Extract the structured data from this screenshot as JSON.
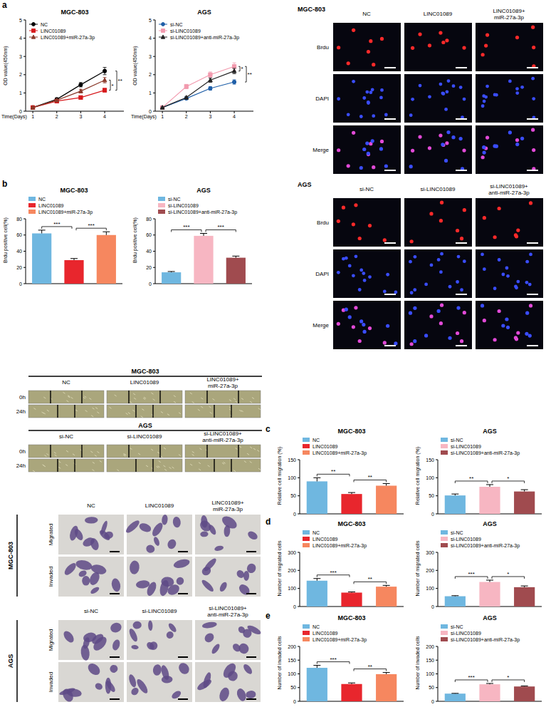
{
  "chart_data": [
    {
      "type": "line",
      "title": "MGC-803",
      "y_label": "OD value(450nm)",
      "x_label": "Time(Days)",
      "x": [
        1,
        2,
        3,
        4
      ],
      "xlim": [
        0.7,
        4.8
      ],
      "xticks": [
        1,
        2,
        3,
        4
      ],
      "ylim": [
        0,
        5
      ],
      "yticks": [
        0,
        1,
        2,
        3,
        4,
        5
      ],
      "legend": "top-left",
      "series": [
        {
          "name": "NC",
          "color": "#000000",
          "marker": "circle",
          "values": [
            0.2,
            0.65,
            1.45,
            2.2
          ],
          "errors": [
            0.03,
            0.08,
            0.12,
            0.2
          ]
        },
        {
          "name": "LINC01089",
          "color": "#d7191c",
          "marker": "square",
          "values": [
            0.2,
            0.55,
            0.75,
            1.15
          ],
          "errors": [
            0.03,
            0.06,
            0.06,
            0.1
          ]
        },
        {
          "name": "LINC01089+miR-27a-3p",
          "color": "#8b3a2b",
          "marker": "triangle",
          "values": [
            0.2,
            0.6,
            1.1,
            1.7
          ],
          "errors": [
            0.03,
            0.05,
            0.1,
            0.15
          ]
        }
      ],
      "annotations": [
        {
          "text": "*",
          "between": [
            1,
            2
          ]
        },
        {
          "text": "**",
          "between": [
            0,
            1
          ]
        }
      ]
    },
    {
      "type": "line",
      "title": "AGS",
      "y_label": "OD value(450nm)",
      "x_label": "Time(Days)",
      "x": [
        1,
        2,
        3,
        4
      ],
      "xlim": [
        0.7,
        4.8
      ],
      "xticks": [
        1,
        2,
        3,
        4
      ],
      "ylim": [
        0,
        5
      ],
      "yticks": [
        0,
        1,
        2,
        3,
        4,
        5
      ],
      "legend": "top-left",
      "series": [
        {
          "name": "si-NC",
          "color": "#1f5fa8",
          "marker": "circle",
          "values": [
            0.2,
            0.7,
            1.25,
            1.6
          ],
          "errors": [
            0.03,
            0.06,
            0.1,
            0.12
          ]
        },
        {
          "name": "si-LINC01089",
          "color": "#f29aae",
          "marker": "square",
          "values": [
            0.2,
            1.35,
            2.0,
            2.45
          ],
          "errors": [
            0.03,
            0.12,
            0.15,
            0.2
          ]
        },
        {
          "name": "si-LINC01089+anti-miR-27a-3p",
          "color": "#222222",
          "marker": "triangle",
          "values": [
            0.2,
            0.75,
            1.7,
            2.2
          ],
          "errors": [
            0.03,
            0.06,
            0.12,
            0.15
          ]
        }
      ],
      "annotations": [
        {
          "text": "*",
          "between": [
            1,
            2
          ]
        },
        {
          "text": "**",
          "between": [
            0,
            1
          ]
        }
      ]
    },
    {
      "type": "bar",
      "title": "MGC-803",
      "y_label": "Brdu positive cell(%)",
      "categories": [
        "NC",
        "LINC01089",
        "LINC01089+miR-27a-3p"
      ],
      "values": [
        62,
        29,
        60
      ],
      "errors": [
        4,
        2,
        4
      ],
      "colors": [
        "#6fb7e0",
        "#e8262d",
        "#f6875f"
      ],
      "ylim": [
        0,
        80
      ],
      "yticks": [
        0,
        20,
        40,
        60,
        80
      ],
      "legend": "top-left",
      "tick_labels": "y",
      "annotations": [
        {
          "text": "***",
          "between": [
            0,
            1
          ]
        },
        {
          "text": "***",
          "between": [
            1,
            2
          ]
        }
      ]
    },
    {
      "type": "bar",
      "title": "AGS",
      "y_label": "Brdu positive cell(%)",
      "categories": [
        "si-NC",
        "si-LINC01089",
        "si-LINC01089+anti-miR-27a-3p"
      ],
      "values": [
        14,
        59,
        32
      ],
      "errors": [
        1,
        3,
        2
      ],
      "colors": [
        "#6fb7e0",
        "#f7b6c2",
        "#a04b4f"
      ],
      "ylim": [
        0,
        80
      ],
      "yticks": [
        0,
        20,
        40,
        60,
        80
      ],
      "legend": "top-left",
      "tick_labels": "y",
      "annotations": [
        {
          "text": "***",
          "between": [
            0,
            1
          ]
        },
        {
          "text": "***",
          "between": [
            1,
            2
          ]
        }
      ]
    },
    {
      "type": "bar",
      "title": "MGC-803",
      "y_label": "Relative cell migration (%)",
      "categories": [
        "NC",
        "LINC01089",
        "LINC01089+miR-27a-3p"
      ],
      "values": [
        90,
        55,
        78
      ],
      "errors": [
        10,
        4,
        6
      ],
      "colors": [
        "#6fb7e0",
        "#e8262d",
        "#f6875f"
      ],
      "ylim": [
        0,
        150
      ],
      "yticks": [
        0,
        50,
        100,
        150
      ],
      "legend": "top-left",
      "tick_labels": "y",
      "annotations": [
        {
          "text": "**",
          "between": [
            0,
            1
          ]
        },
        {
          "text": "**",
          "between": [
            1,
            2
          ]
        }
      ]
    },
    {
      "type": "bar",
      "title": "AGS",
      "y_label": "Relative cell migration (%)",
      "categories": [
        "si-NC",
        "si-LINC01089",
        "si-LINC01089+anti-miR-27a-3p"
      ],
      "values": [
        51,
        75,
        62
      ],
      "errors": [
        4,
        6,
        5
      ],
      "colors": [
        "#6fb7e0",
        "#f7b6c2",
        "#a04b4f"
      ],
      "ylim": [
        0,
        150
      ],
      "yticks": [
        0,
        50,
        100,
        150
      ],
      "legend": "top-left",
      "tick_labels": "y",
      "annotations": [
        {
          "text": "**",
          "between": [
            0,
            1
          ]
        },
        {
          "text": "*",
          "between": [
            1,
            2
          ]
        }
      ]
    },
    {
      "type": "bar",
      "title": "MGC-803",
      "y_label": "Number of migrated cells",
      "categories": [
        "NC",
        "LINC01089",
        "LINC01089+miR-27a-3p"
      ],
      "values": [
        143,
        77,
        110
      ],
      "errors": [
        12,
        4,
        7
      ],
      "colors": [
        "#6fb7e0",
        "#e8262d",
        "#f6875f"
      ],
      "ylim": [
        0,
        300
      ],
      "yticks": [
        0,
        100,
        200,
        300
      ],
      "legend": "top-left",
      "tick_labels": "y",
      "annotations": [
        {
          "text": "***",
          "between": [
            0,
            1
          ]
        },
        {
          "text": "**",
          "between": [
            1,
            2
          ]
        }
      ]
    },
    {
      "type": "bar",
      "title": "AGS",
      "y_label": "Number of migrated cells",
      "categories": [
        "si-NC",
        "si-LINC01089",
        "si-LINC01089+anti-miR-27a-3p"
      ],
      "values": [
        57,
        136,
        107
      ],
      "errors": [
        3,
        10,
        7
      ],
      "colors": [
        "#6fb7e0",
        "#f7b6c2",
        "#a04b4f"
      ],
      "ylim": [
        0,
        300
      ],
      "yticks": [
        0,
        100,
        200,
        300
      ],
      "legend": "top-left",
      "tick_labels": "y",
      "annotations": [
        {
          "text": "***",
          "between": [
            0,
            1
          ]
        },
        {
          "text": "*",
          "between": [
            1,
            2
          ]
        }
      ]
    },
    {
      "type": "bar",
      "title": "MGC-803",
      "y_label": "Number of invaded cells",
      "categories": [
        "NC",
        "LINC01089",
        "LINC01089+miR-27a-3p"
      ],
      "values": [
        122,
        63,
        99
      ],
      "errors": [
        9,
        4,
        6
      ],
      "colors": [
        "#6fb7e0",
        "#e8262d",
        "#f6875f"
      ],
      "ylim": [
        0,
        200
      ],
      "yticks": [
        0,
        50,
        100,
        150,
        200
      ],
      "legend": "top-left",
      "tick_labels": "y",
      "annotations": [
        {
          "text": "***",
          "between": [
            0,
            1
          ]
        },
        {
          "text": "**",
          "between": [
            1,
            2
          ]
        }
      ]
    },
    {
      "type": "bar",
      "title": "AGS",
      "y_label": "Number of invaded cells",
      "categories": [
        "si-NC",
        "si-LINC01089",
        "si-LINC01089+anti-miR-27a-3p"
      ],
      "values": [
        28,
        62,
        54
      ],
      "errors": [
        1,
        3,
        2
      ],
      "colors": [
        "#6fb7e0",
        "#f7b6c2",
        "#a04b4f"
      ],
      "ylim": [
        0,
        200
      ],
      "yticks": [
        0,
        50,
        100,
        150,
        200
      ],
      "legend": "top-left",
      "tick_labels": "y",
      "annotations": [
        {
          "text": "***",
          "between": [
            0,
            1
          ]
        },
        {
          "text": "*",
          "between": [
            1,
            2
          ]
        }
      ]
    }
  ],
  "figure": {
    "panel_labels": [
      "a",
      "b",
      "c",
      "d",
      "e"
    ],
    "brdu": [
      {
        "cell_line": "MGC-803",
        "columns": [
          [
            "NC"
          ],
          [
            "LINC01089"
          ],
          [
            "LINC01089+",
            "miR-27a-3p"
          ]
        ],
        "rows": [
          "Brdu",
          "DAPI",
          "Merge"
        ]
      },
      {
        "cell_line": "AGS",
        "columns": [
          [
            "si-NC"
          ],
          [
            "si-LINC01089"
          ],
          [
            "si-LINC01089+",
            "anti-miR-27a-3p"
          ]
        ],
        "rows": [
          "Brdu",
          "DAPI",
          "Merge"
        ]
      }
    ],
    "scratch": [
      {
        "cell_line": "MGC-803",
        "columns": [
          [
            "NC"
          ],
          [
            "LINC01089"
          ],
          [
            "LINC01089+",
            "miR-27a-3p"
          ]
        ],
        "rows": [
          "0h",
          "24h"
        ]
      },
      {
        "cell_line": "AGS",
        "columns": [
          [
            "si-NC"
          ],
          [
            "si-LINC01089"
          ],
          [
            "si-LINC01089+",
            "anti-miR-27a-3p"
          ]
        ],
        "rows": [
          "0h",
          "24h"
        ]
      }
    ],
    "transwell": [
      {
        "cell_line": "MGC-803",
        "columns": [
          [
            "NC"
          ],
          [
            "LINC01089"
          ],
          [
            "LINC01089+",
            "miR-27a-3p"
          ]
        ],
        "rows": [
          "Migrated",
          "Invaded"
        ]
      },
      {
        "cell_line": "AGS",
        "columns": [
          [
            "si-NC"
          ],
          [
            "si-LINC01089"
          ],
          [
            "si-LINC01089+",
            "anti-miR-27a-3p"
          ]
        ],
        "rows": [
          "Migrated",
          "Invaded"
        ]
      }
    ]
  }
}
